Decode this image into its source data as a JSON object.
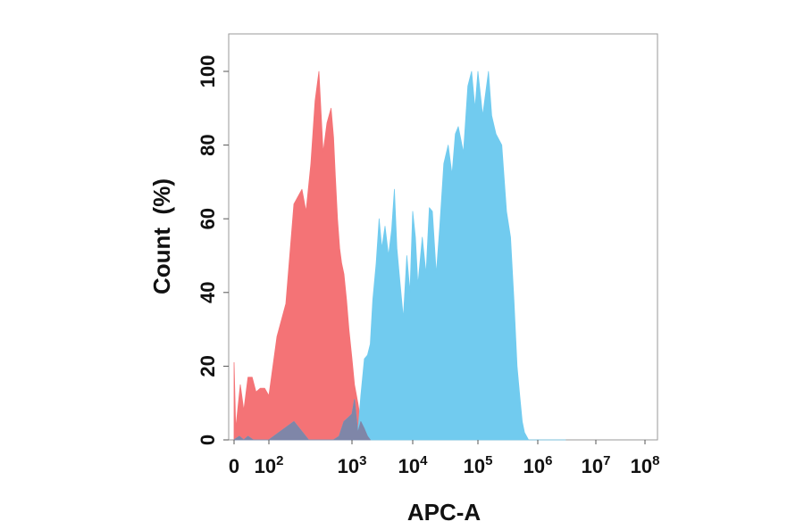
{
  "chart_data": {
    "type": "area",
    "title": "",
    "xlabel": "APC-A",
    "ylabel": "Count  (%)",
    "x_scale": "biexponential",
    "xlim": [
      0,
      100000000
    ],
    "ylim": [
      0,
      110
    ],
    "grid": false,
    "legend": "none",
    "y_ticks": [
      {
        "value": 0,
        "label": "0"
      },
      {
        "value": 20,
        "label": "20"
      },
      {
        "value": 40,
        "label": "40"
      },
      {
        "value": 60,
        "label": "60"
      },
      {
        "value": 80,
        "label": "80"
      },
      {
        "value": 100,
        "label": "100"
      }
    ],
    "x_ticks": [
      {
        "value": 0,
        "base": "0",
        "exp": ""
      },
      {
        "value": 100,
        "base": "10",
        "exp": "2"
      },
      {
        "value": 1000,
        "base": "10",
        "exp": "3"
      },
      {
        "value": 10000,
        "base": "10",
        "exp": "4"
      },
      {
        "value": 100000,
        "base": "10",
        "exp": "5"
      },
      {
        "value": 1000000,
        "base": "10",
        "exp": "6"
      },
      {
        "value": 10000000,
        "base": "10",
        "exp": "7"
      },
      {
        "value": 100000000,
        "base": "10",
        "exp": "8"
      }
    ],
    "series": [
      {
        "color": "#f47376",
        "x": [
          0,
          5,
          18,
          28,
          40,
          52,
          63,
          75,
          88,
          100,
          125,
          160,
          200,
          250,
          280,
          320,
          360,
          400,
          450,
          500,
          560,
          600,
          630,
          670,
          710,
          750,
          800,
          860,
          920,
          1000,
          1100,
          1250,
          1400,
          1600,
          1800,
          2000
        ],
        "values": [
          21,
          3,
          15,
          8,
          17,
          17,
          13,
          14,
          14,
          12,
          28,
          37,
          64,
          68,
          62,
          75,
          92,
          100,
          78,
          86,
          90,
          82,
          72,
          60,
          52,
          48,
          45,
          38,
          30,
          22,
          15,
          10,
          5,
          3,
          1,
          0
        ]
      },
      {
        "color": "#71cbef",
        "x": [
          0,
          15,
          28,
          40,
          55,
          80,
          100,
          200,
          300,
          400,
          500,
          600,
          700,
          800,
          1000,
          1100,
          1250,
          1400,
          1600,
          1800,
          2000,
          2200,
          2500,
          2800,
          3100,
          3500,
          4000,
          4500,
          5000,
          5500,
          6000,
          7000,
          8000,
          9000,
          10000,
          11000,
          12000,
          14000,
          16000,
          18000,
          20000,
          23000,
          26000,
          30000,
          35000,
          40000,
          45000,
          50000,
          60000,
          70000,
          80000,
          90000,
          100000,
          120000,
          150000,
          170000,
          200000,
          250000,
          300000,
          350000,
          400000,
          450000,
          500000,
          550000,
          600000,
          700000,
          800000,
          900000,
          1000000,
          1150000,
          1300000,
          1500000,
          1800000,
          2100000,
          2500000,
          3000000
        ],
        "values": [
          0,
          1,
          0,
          1,
          0,
          0,
          0,
          5,
          0,
          0,
          0,
          0,
          1,
          5,
          7,
          11,
          2,
          12,
          22,
          23,
          26,
          38,
          48,
          60,
          52,
          58,
          50,
          57,
          68,
          52,
          45,
          33,
          50,
          40,
          62,
          55,
          42,
          55,
          45,
          63,
          62,
          45,
          58,
          75,
          80,
          72,
          83,
          85,
          78,
          96,
          100,
          90,
          100,
          88,
          100,
          88,
          83,
          80,
          62,
          55,
          38,
          20,
          12,
          5,
          2,
          0,
          0,
          0,
          0,
          0,
          0,
          0,
          0,
          0,
          0,
          0
        ]
      },
      {
        "color": "#7f86a8",
        "x": [
          0,
          15,
          28,
          40,
          55,
          80,
          100,
          200,
          300,
          400,
          500,
          600,
          700,
          800,
          900,
          1000,
          1100,
          1250,
          1400,
          1600,
          1800,
          2000
        ],
        "values": [
          0,
          1,
          0,
          1,
          0,
          0,
          0,
          5,
          0,
          0,
          0,
          0,
          1,
          5,
          6,
          7,
          11,
          2,
          5,
          3,
          1,
          0
        ]
      }
    ]
  }
}
